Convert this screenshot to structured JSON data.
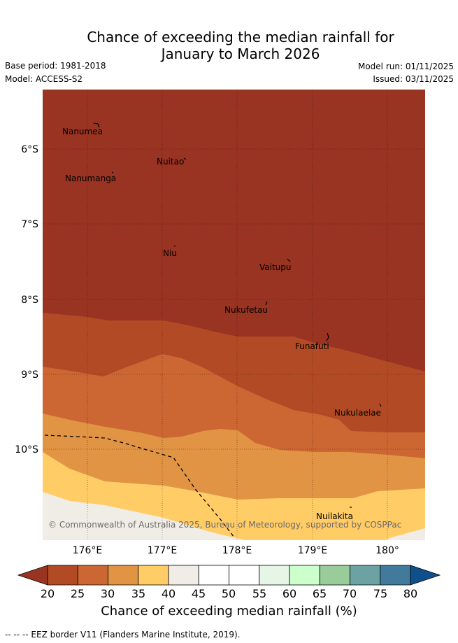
{
  "header": {
    "title_line1": "Chance of exceeding the median rainfall for",
    "title_line2": "January to March 2026",
    "base_period": "Base period: 1981-2018",
    "model": "Model: ACCESS-S2",
    "model_run": "Model run: 01/11/2025",
    "issued": "Issued: 03/11/2025"
  },
  "map": {
    "lat_labels": [
      "6°S",
      "7°S",
      "8°S",
      "9°S",
      "10°S"
    ],
    "lon_labels": [
      "176°E",
      "177°E",
      "178°E",
      "179°E",
      "180°"
    ],
    "places": [
      {
        "name": "Nanumea"
      },
      {
        "name": "Nuitao"
      },
      {
        "name": "Nanumanga"
      },
      {
        "name": "Niu"
      },
      {
        "name": "Vaitupu"
      },
      {
        "name": "Nukufetau"
      },
      {
        "name": "Funafuti"
      },
      {
        "name": "Nukulaelae"
      },
      {
        "name": "Nuilakita"
      }
    ],
    "copyright": "© Commonwealth of Australia 2025, Bureau of Meteorology, supported by COSPPac"
  },
  "colorbar": {
    "ticks": [
      "20",
      "25",
      "30",
      "35",
      "40",
      "45",
      "50",
      "55",
      "60",
      "65",
      "70",
      "75",
      "80"
    ],
    "colors": [
      "#b24b25",
      "#cc6633",
      "#e09444",
      "#ffcc66",
      "#f0ece6",
      "#ffffff",
      "#ffffff",
      "#e6f5e6",
      "#ccffcc",
      "#99cc99",
      "#6ca2a2",
      "#427a9c"
    ],
    "under_color": "#993322",
    "over_color": "#0f4f8c",
    "label": "Chance of exceeding median rainfall (%)"
  },
  "legend": {
    "eez": "-- -- -- EEZ border V11 (Flanders Marine Institute, 2019)."
  }
}
